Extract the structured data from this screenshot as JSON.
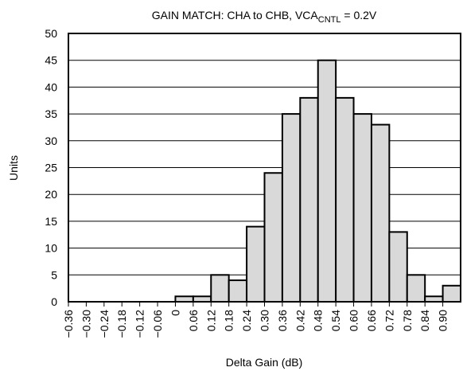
{
  "chart_data": {
    "type": "bar",
    "title": {
      "main": "GAIN MATCH: CHA to CHB, VCA",
      "subscript": "CNTL",
      "suffix": " = 0.2V"
    },
    "xlabel": "Delta Gain (dB)",
    "ylabel": "Units",
    "ylim": [
      0,
      50
    ],
    "yticks": [
      "0",
      "5",
      "10",
      "15",
      "20",
      "25",
      "30",
      "35",
      "40",
      "45",
      "50"
    ],
    "grid": true,
    "categories": [
      "−0.36",
      "−0.30",
      "−0.24",
      "−0.18",
      "−0.12",
      "−0.06",
      "0",
      "0.06",
      "0.12",
      "0.18",
      "0.24",
      "0.30",
      "0.36",
      "0.42",
      "0.48",
      "0.54",
      "0.60",
      "0.66",
      "0.72",
      "0.78",
      "0.84",
      "0.90"
    ],
    "values": [
      0,
      0,
      0,
      0,
      0,
      0,
      1,
      1,
      5,
      4,
      14,
      24,
      35,
      38,
      45,
      38,
      35,
      33,
      13,
      5,
      1,
      3
    ]
  }
}
